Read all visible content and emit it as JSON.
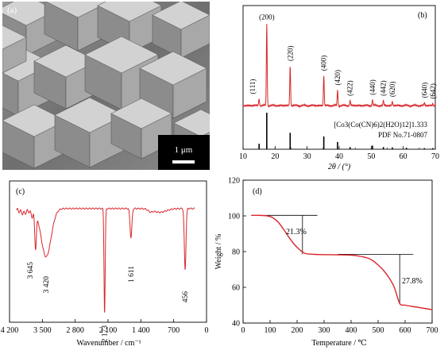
{
  "sem": {
    "label": "(a)",
    "scale_bar": "1 μm"
  },
  "xrd": {
    "label": "(b)",
    "xlabel": "2θ / (°)",
    "xticks": [
      "10",
      "20",
      "30",
      "40",
      "50",
      "60",
      "70"
    ],
    "xlim": [
      10,
      70
    ],
    "sample_label": "[Co3(Co(CN)6)2(H2O)12]1.333",
    "reference_label": "PDF No.71-0807",
    "peaks": [
      {
        "x": 15.0,
        "h": 0.07,
        "hkl": "(111)"
      },
      {
        "x": 17.4,
        "h": 0.84,
        "hkl": "(200)"
      },
      {
        "x": 24.7,
        "h": 0.41,
        "hkl": "(220)"
      },
      {
        "x": 35.2,
        "h": 0.31,
        "hkl": "(400)"
      },
      {
        "x": 39.5,
        "h": 0.16,
        "hkl": "(420)"
      },
      {
        "x": 43.4,
        "h": 0.05,
        "hkl": "(422)"
      },
      {
        "x": 50.4,
        "h": 0.06,
        "hkl": "(440)"
      },
      {
        "x": 53.8,
        "h": 0.05,
        "hkl": "(442)"
      },
      {
        "x": 56.6,
        "h": 0.04,
        "hkl": "(620)"
      },
      {
        "x": 66.6,
        "h": 0.03,
        "hkl": "(640)"
      },
      {
        "x": 69.2,
        "h": 0.02,
        "hkl": "(642)"
      }
    ],
    "reference_lines": [
      {
        "x": 15.0,
        "h": 0.15
      },
      {
        "x": 17.4,
        "h": 1.0
      },
      {
        "x": 24.7,
        "h": 0.45
      },
      {
        "x": 35.2,
        "h": 0.35
      },
      {
        "x": 39.5,
        "h": 0.2
      },
      {
        "x": 43.4,
        "h": 0.06
      },
      {
        "x": 50.4,
        "h": 0.1
      },
      {
        "x": 53.8,
        "h": 0.06
      },
      {
        "x": 56.6,
        "h": 0.05
      },
      {
        "x": 61.0,
        "h": 0.04
      },
      {
        "x": 66.6,
        "h": 0.03
      },
      {
        "x": 69.2,
        "h": 0.03
      }
    ]
  },
  "ir": {
    "label": "(c)",
    "xlabel": "Wavenumber / cm⁻¹",
    "xticks": [
      "4 200",
      "3 500",
      "2 800",
      "2 100",
      "1 400",
      "700",
      "0"
    ],
    "xlim": [
      4200,
      0
    ],
    "annotations": [
      "3 645",
      "3 420",
      "2 173",
      "1 611",
      "456"
    ],
    "peaks": [
      {
        "x": 3645,
        "depth": 0.33,
        "width": 25
      },
      {
        "x": 3420,
        "depth": 0.45,
        "width": 150
      },
      {
        "x": 2173,
        "depth": 0.97,
        "width": 18
      },
      {
        "x": 1611,
        "depth": 0.27,
        "width": 28
      },
      {
        "x": 456,
        "depth": 0.57,
        "width": 25
      }
    ]
  },
  "tga": {
    "label": "(d)",
    "xlabel": "Temperature / ℃",
    "ylabel": "Weight / %",
    "xticks": [
      "0",
      "100",
      "200",
      "300",
      "400",
      "500",
      "600",
      "700"
    ],
    "yticks": [
      "40",
      "60",
      "80",
      "100",
      "120"
    ],
    "xlim": [
      0,
      700
    ],
    "ylim": [
      40,
      120
    ],
    "x": [
      30,
      60,
      90,
      110,
      130,
      150,
      170,
      190,
      210,
      230,
      260,
      300,
      350,
      400,
      430,
      460,
      480,
      500,
      520,
      540,
      560,
      580,
      600,
      640,
      680,
      700
    ],
    "y": [
      100.3,
      100.3,
      100,
      99,
      96.5,
      92.5,
      88,
      84,
      81,
      79,
      78.5,
      78.3,
      78.2,
      78,
      77.5,
      76.5,
      75,
      72.5,
      69.5,
      65.5,
      60,
      51,
      50,
      49,
      48,
      47.5
    ],
    "loss_labels": [
      "21.3%",
      "27.8%"
    ]
  }
}
